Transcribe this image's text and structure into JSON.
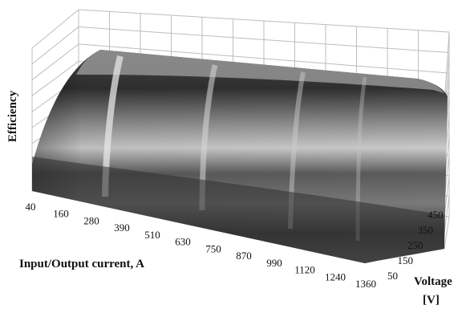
{
  "chart_data": {
    "type": "surface",
    "title": "",
    "zlabel": "Efficiency",
    "xlabel": "Input/Output current, A",
    "ylabel_line1": "Voltage",
    "ylabel_line2": "[V]",
    "x_ticks": [
      "40",
      "160",
      "280",
      "390",
      "510",
      "630",
      "750",
      "870",
      "990",
      "1120",
      "1240",
      "1360"
    ],
    "y_ticks": [
      "50",
      "150",
      "250",
      "350",
      "450"
    ],
    "x_range": [
      40,
      1360
    ],
    "y_range": [
      50,
      450
    ],
    "grid": true,
    "colors": {
      "surface_dark": "#3a3a3a",
      "surface_light": "#c8c8c8",
      "grid": "#bdbdbd"
    }
  }
}
